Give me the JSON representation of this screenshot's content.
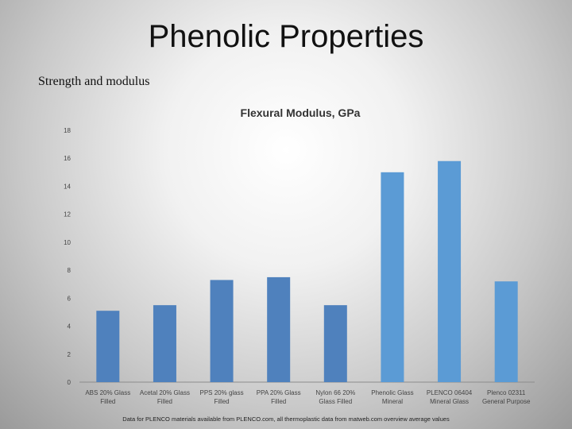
{
  "slide": {
    "title": "Phenolic Properties",
    "subtitle": "Strength and modulus",
    "footnote": "Data for PLENCO materials available from PLENCO.com, all thermoplastic data from matweb.com overview average values"
  },
  "colors": {
    "bar_dark": "#4f81bd",
    "bar_light": "#5b9bd5"
  },
  "chart_data": {
    "type": "bar",
    "title": "Flexural Modulus, GPa",
    "xlabel": "",
    "ylabel": "",
    "ylim": [
      0,
      18
    ],
    "yticks": [
      0,
      2,
      4,
      6,
      8,
      10,
      12,
      14,
      16,
      18
    ],
    "grid": false,
    "legend": "none",
    "categories": [
      [
        "ABS 20% Glass",
        "Filled"
      ],
      [
        "Acetal 20% Glass",
        "Filled"
      ],
      [
        "PPS 20% glass",
        "Filled"
      ],
      [
        "PPA 20% Glass",
        "Filled"
      ],
      [
        "Nylon 66 20%",
        "Glass Filled"
      ],
      [
        "Phenolic Glass",
        "Mineral"
      ],
      [
        "PLENCO 06404",
        "Mineral Glass"
      ],
      [
        "Plenco 02311",
        "General Purpose"
      ]
    ],
    "values": [
      5.1,
      5.5,
      7.3,
      7.5,
      5.5,
      15.0,
      15.8,
      7.2
    ],
    "bar_colors": [
      "#4f81bd",
      "#4f81bd",
      "#4f81bd",
      "#4f81bd",
      "#4f81bd",
      "#5b9bd5",
      "#5b9bd5",
      "#5b9bd5"
    ]
  }
}
